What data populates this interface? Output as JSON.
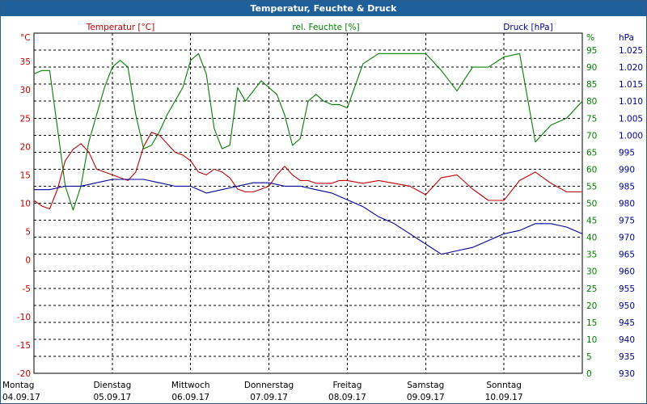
{
  "window": {
    "title": "Temperatur, Feuchte & Druck"
  },
  "colors": {
    "temperature": "#c00000",
    "humidity": "#008000",
    "pressure": "#00009c",
    "titlebar": "#1f5f9a"
  },
  "chart_data": {
    "type": "line",
    "title": "Temperatur, Feuchte & Druck",
    "grid": true,
    "x": {
      "range": [
        0,
        7
      ],
      "ticks": [
        {
          "day": "Montag",
          "date": "04.09.17"
        },
        {
          "day": "Dienstag",
          "date": "05.09.17"
        },
        {
          "day": "Mittwoch",
          "date": "06.09.17"
        },
        {
          "day": "Donnerstag",
          "date": "07.09.17"
        },
        {
          "day": "Freitag",
          "date": "08.09.17"
        },
        {
          "day": "Samstag",
          "date": "09.09.17"
        },
        {
          "day": "Sonntag",
          "date": "10.09.17"
        }
      ]
    },
    "axes": {
      "temperature": {
        "label": "Temperatur [°C]",
        "unit": "°C",
        "ylim": [
          -20,
          40
        ],
        "ticks": [
          "35",
          "30",
          "25",
          "20",
          "15",
          "10",
          "5",
          "0",
          "-5",
          "-10",
          "-15",
          "-20"
        ]
      },
      "humidity": {
        "label": "rel. Feuchte [%]",
        "unit": "%",
        "ylim": [
          0,
          100
        ],
        "ticks": [
          "95",
          "90",
          "85",
          "80",
          "75",
          "70",
          "65",
          "60",
          "55",
          "50",
          "45",
          "40",
          "35",
          "30",
          "25",
          "20",
          "15",
          "10",
          "5",
          "0"
        ]
      },
      "pressure": {
        "label": "Druck [hPa]",
        "unit": "hPa",
        "ylim": [
          930,
          1030
        ],
        "ticks": [
          "1.025",
          "1.020",
          "1.015",
          "1.010",
          "1.005",
          "1.000",
          "995",
          "990",
          "985",
          "980",
          "975",
          "970",
          "965",
          "960",
          "955",
          "950",
          "945",
          "940",
          "935",
          "930"
        ]
      }
    },
    "series": [
      {
        "name": "Temperatur [°C]",
        "axis": "temperature",
        "x": [
          0,
          0.1,
          0.2,
          0.3,
          0.4,
          0.5,
          0.6,
          0.7,
          0.8,
          0.9,
          1.0,
          1.1,
          1.2,
          1.3,
          1.4,
          1.5,
          1.6,
          1.7,
          1.8,
          1.9,
          2.0,
          2.1,
          2.2,
          2.3,
          2.4,
          2.5,
          2.6,
          2.7,
          2.8,
          2.9,
          3.0,
          3.1,
          3.2,
          3.3,
          3.4,
          3.5,
          3.6,
          3.7,
          3.8,
          3.9,
          4.0,
          4.2,
          4.4,
          4.6,
          4.8,
          5.0,
          5.2,
          5.4,
          5.6,
          5.8,
          6.0,
          6.2,
          6.4,
          6.6,
          6.8,
          7.0
        ],
        "values": [
          10.5,
          9.5,
          9.0,
          12.5,
          17.5,
          19.5,
          20.5,
          19.0,
          16.0,
          15.5,
          15.0,
          14.5,
          14.0,
          15.5,
          20.0,
          22.5,
          22.0,
          20.5,
          19.0,
          18.5,
          17.5,
          15.5,
          15.0,
          16.0,
          15.5,
          14.5,
          12.5,
          12.0,
          12.0,
          12.5,
          13.0,
          15.0,
          16.5,
          15.0,
          14.0,
          14.0,
          13.5,
          13.5,
          13.5,
          14.0,
          14.0,
          13.5,
          14.0,
          13.5,
          13.0,
          11.5,
          14.5,
          15.0,
          12.5,
          10.5,
          10.5,
          14.0,
          15.5,
          13.5,
          12.0,
          12.0
        ]
      },
      {
        "name": "rel. Feuchte [%]",
        "axis": "humidity",
        "x": [
          0,
          0.1,
          0.2,
          0.3,
          0.4,
          0.5,
          0.6,
          0.7,
          0.8,
          0.9,
          1.0,
          1.1,
          1.2,
          1.3,
          1.4,
          1.5,
          1.6,
          1.7,
          1.8,
          1.9,
          2.0,
          2.1,
          2.2,
          2.3,
          2.4,
          2.5,
          2.6,
          2.7,
          2.8,
          2.9,
          3.0,
          3.1,
          3.2,
          3.3,
          3.4,
          3.5,
          3.6,
          3.7,
          3.8,
          3.9,
          4.0,
          4.2,
          4.4,
          4.6,
          4.8,
          5.0,
          5.2,
          5.4,
          5.6,
          5.8,
          6.0,
          6.2,
          6.4,
          6.6,
          6.8,
          7.0
        ],
        "values": [
          88,
          89,
          89,
          72,
          55,
          48,
          55,
          68,
          76,
          84,
          90,
          92,
          90,
          76,
          66,
          67,
          71,
          76,
          80,
          84,
          92,
          94,
          88,
          72,
          66,
          67,
          84,
          80,
          83,
          86,
          84,
          82,
          76,
          67,
          69,
          80,
          82,
          80,
          79,
          79,
          78,
          91,
          94,
          94,
          94,
          94,
          89,
          83,
          90,
          90,
          93,
          94,
          68,
          73,
          75,
          80
        ]
      },
      {
        "name": "Druck [hPa]",
        "axis": "pressure",
        "x": [
          0,
          0.2,
          0.4,
          0.6,
          0.8,
          1.0,
          1.2,
          1.4,
          1.6,
          1.8,
          2.0,
          2.2,
          2.4,
          2.6,
          2.8,
          3.0,
          3.2,
          3.4,
          3.6,
          3.8,
          4.0,
          4.2,
          4.4,
          4.6,
          4.8,
          5.0,
          5.2,
          5.4,
          5.6,
          5.8,
          6.0,
          6.2,
          6.4,
          6.6,
          6.8,
          7.0
        ],
        "values": [
          984,
          984,
          985,
          985,
          986,
          987,
          987,
          987,
          986,
          985,
          985,
          983,
          984,
          985,
          986,
          986,
          985,
          985,
          984,
          983,
          981,
          979,
          976,
          974,
          971,
          968,
          965,
          966,
          967,
          969,
          971,
          972,
          974,
          974,
          973,
          971
        ]
      }
    ]
  }
}
